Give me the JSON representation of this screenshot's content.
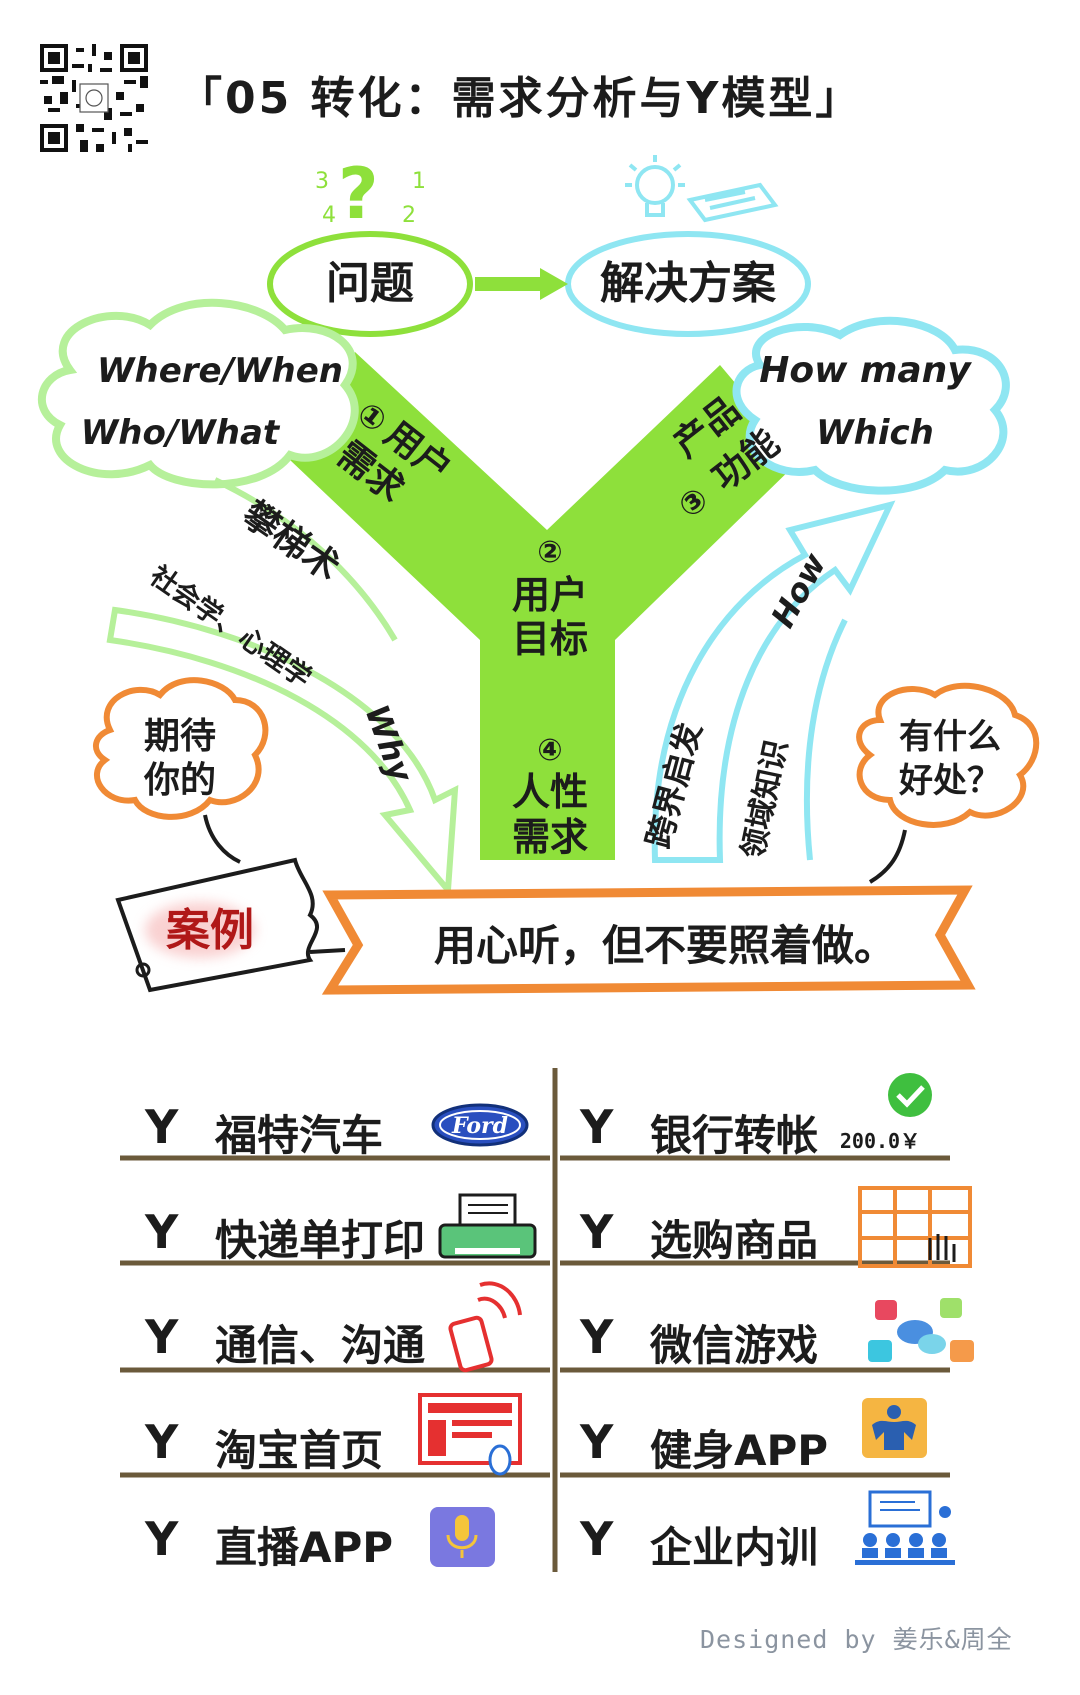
{
  "title": "「05 转化：需求分析与Y模型」",
  "top": {
    "problem": "问题",
    "solution": "解决方案",
    "q_marks": [
      "3",
      "4",
      "2",
      "1"
    ]
  },
  "clouds": {
    "left": [
      "Where/When",
      "Who/What"
    ],
    "right": [
      "How many",
      "Which"
    ]
  },
  "y_nodes": {
    "n1": {
      "num": "①",
      "text": [
        "用户",
        "需求"
      ]
    },
    "n2": {
      "num": "②",
      "text": [
        "用户",
        "目标"
      ]
    },
    "n3": {
      "num": "③",
      "text": [
        "产品",
        "功能"
      ]
    },
    "n4": {
      "num": "④",
      "text": [
        "人性",
        "需求"
      ]
    }
  },
  "arrows": {
    "left_top": "攀梯术",
    "left_mid": "社会学、心理学",
    "left_why": "Why",
    "right_how": "How",
    "right_a": "跨界启发",
    "right_b": "领域知识"
  },
  "bubbles": {
    "left": [
      "期待",
      "你的"
    ],
    "right": [
      "有什么",
      "好处？"
    ]
  },
  "case_tag": "案例",
  "banner": "用心听，但不要照着做。",
  "cases_left": [
    {
      "label": "福特汽车",
      "icon": "ford-logo-icon",
      "logo_text": "Ford"
    },
    {
      "label": "快递单打印",
      "icon": "printer-icon"
    },
    {
      "label": "通信、沟通",
      "icon": "phone-signal-icon"
    },
    {
      "label": "淘宝首页",
      "icon": "webpage-icon"
    },
    {
      "label": "直播APP",
      "icon": "microphone-icon"
    }
  ],
  "cases_right": [
    {
      "label": "银行转帐",
      "icon": "check-icon",
      "amount": "200.0￥"
    },
    {
      "label": "选购商品",
      "icon": "shelf-hand-icon"
    },
    {
      "label": "微信游戏",
      "icon": "chat-blocks-icon"
    },
    {
      "label": "健身APP",
      "icon": "muscle-icon"
    },
    {
      "label": "企业内训",
      "icon": "classroom-icon"
    }
  ],
  "y_mark": "Y",
  "credit": "Designed by 姜乐&周全",
  "colors": {
    "green": "#8ee03b",
    "lightgreen": "#b6f09a",
    "cyan": "#8fe6f2",
    "orange": "#f08a35",
    "red": "#e53030"
  }
}
